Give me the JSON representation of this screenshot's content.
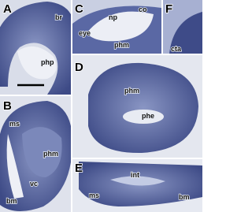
{
  "panels": [
    {
      "letter": "A",
      "labels": [
        "br",
        "php"
      ]
    },
    {
      "letter": "B",
      "labels": [
        "ms",
        "phm",
        "vc",
        "bm"
      ]
    },
    {
      "letter": "C",
      "labels": [
        "co",
        "np",
        "eye",
        "phm"
      ]
    },
    {
      "letter": "F",
      "labels": [
        "cta"
      ]
    },
    {
      "letter": "D",
      "labels": [
        "phm",
        "phe"
      ]
    },
    {
      "letter": "E",
      "labels": [
        "int",
        "ms",
        "bm"
      ]
    }
  ]
}
